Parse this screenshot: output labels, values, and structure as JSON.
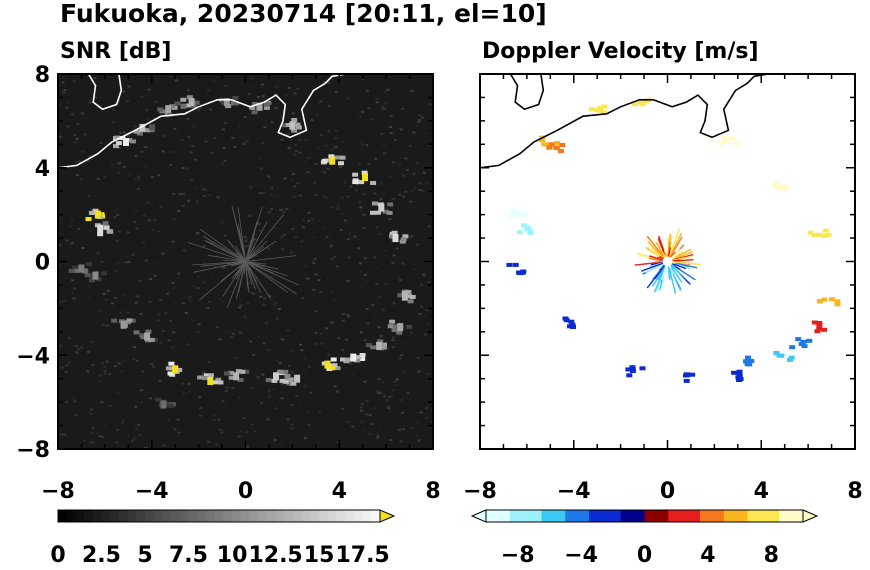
{
  "figure": {
    "title": "Fukuoka, 20230714 [20:11, el=10]"
  },
  "chart_data": [
    {
      "type": "heatmap",
      "title": "SNR [dB]",
      "xlabel": "",
      "ylabel": "",
      "xlim": [
        -8,
        8
      ],
      "ylim": [
        -8,
        8
      ],
      "xticks": [
        "−8",
        "−4",
        "0",
        "4",
        "8"
      ],
      "yticks": [
        "8",
        "4",
        "0",
        "−4",
        "−8"
      ],
      "background": "#1a1a1a",
      "colorbar": {
        "min": 0,
        "max": 18.5,
        "step": 0.5,
        "extend": "max",
        "tick_labels": [
          "0",
          "2.5",
          "5",
          "7.5",
          "10",
          "12.5",
          "15",
          "17.5"
        ],
        "low_color": "#000000",
        "high_color": "#ffffff",
        "extend_color": "#f5e11a"
      },
      "echo_ring": {
        "center": [
          0,
          0
        ],
        "radius_km": 6.3
      },
      "echoes": [
        {
          "x": -6.3,
          "y": 2.0,
          "v": 18
        },
        {
          "x": -6.2,
          "y": 1.4,
          "v": 16
        },
        {
          "x": -5.1,
          "y": 5.1,
          "v": 17
        },
        {
          "x": -4.4,
          "y": 5.7,
          "v": 14
        },
        {
          "x": -3.3,
          "y": 6.5,
          "v": 12
        },
        {
          "x": -2.3,
          "y": 6.8,
          "v": 13
        },
        {
          "x": -0.8,
          "y": 6.8,
          "v": 11
        },
        {
          "x": 0.6,
          "y": 6.6,
          "v": 12
        },
        {
          "x": 2.0,
          "y": 5.8,
          "v": 14
        },
        {
          "x": 3.7,
          "y": 4.3,
          "v": 18
        },
        {
          "x": 5.1,
          "y": 3.6,
          "v": 18
        },
        {
          "x": 5.8,
          "y": 2.3,
          "v": 15
        },
        {
          "x": 6.4,
          "y": 1.0,
          "v": 16
        },
        {
          "x": 6.8,
          "y": -1.5,
          "v": 13
        },
        {
          "x": 6.6,
          "y": -2.8,
          "v": 12
        },
        {
          "x": 5.7,
          "y": -3.6,
          "v": 13
        },
        {
          "x": 4.6,
          "y": -4.1,
          "v": 17
        },
        {
          "x": 3.5,
          "y": -4.4,
          "v": 18
        },
        {
          "x": 2.2,
          "y": -5.0,
          "v": 14
        },
        {
          "x": 1.3,
          "y": -4.9,
          "v": 15
        },
        {
          "x": -0.4,
          "y": -4.9,
          "v": 13
        },
        {
          "x": -1.5,
          "y": -5.1,
          "v": 18
        },
        {
          "x": -3.0,
          "y": -4.6,
          "v": 18
        },
        {
          "x": -4.2,
          "y": -3.2,
          "v": 12
        },
        {
          "x": -5.2,
          "y": -2.7,
          "v": 11
        },
        {
          "x": -6.4,
          "y": -0.6,
          "v": 10
        },
        {
          "x": -7.0,
          "y": -0.3,
          "v": 9
        },
        {
          "x": -3.5,
          "y": -6.1,
          "v": 8
        }
      ]
    },
    {
      "type": "heatmap",
      "title": "Doppler Velocity [m/s]",
      "xlabel": "",
      "ylabel": "",
      "xlim": [
        -8,
        8
      ],
      "ylim": [
        -8,
        8
      ],
      "xticks": [
        "−8",
        "−4",
        "0",
        "4",
        "8"
      ],
      "yticks": [],
      "background": "#ffffff",
      "colorbar": {
        "min": -10,
        "max": 10,
        "step": 0.5,
        "extend": "both",
        "tick_labels": [
          "−8",
          "−4",
          "0",
          "4",
          "8"
        ],
        "negative_colors": [
          "#e0ffff",
          "#9ef0fa",
          "#3cc8f0",
          "#1e78e6",
          "#0a2ad2",
          "#00008c"
        ],
        "positive_colors": [
          "#8c0000",
          "#e61e1e",
          "#f5781e",
          "#fab41e",
          "#fae650",
          "#fffac8"
        ]
      },
      "echoes": [
        {
          "x": -6.3,
          "y": 2.0,
          "v": -9
        },
        {
          "x": -6.2,
          "y": 1.4,
          "v": -8
        },
        {
          "x": -5.1,
          "y": 5.1,
          "v": 5
        },
        {
          "x": -4.8,
          "y": 4.8,
          "v": 4
        },
        {
          "x": -3.0,
          "y": 6.5,
          "v": 7
        },
        {
          "x": -1.0,
          "y": 6.9,
          "v": 8
        },
        {
          "x": 2.6,
          "y": 5.2,
          "v": 9
        },
        {
          "x": 5.0,
          "y": 3.2,
          "v": 9
        },
        {
          "x": 6.5,
          "y": 1.2,
          "v": 8
        },
        {
          "x": 6.9,
          "y": -1.8,
          "v": 5
        },
        {
          "x": 6.6,
          "y": -2.8,
          "v": 2
        },
        {
          "x": 5.7,
          "y": -3.5,
          "v": -5
        },
        {
          "x": 4.9,
          "y": -4.1,
          "v": -6
        },
        {
          "x": 3.4,
          "y": -4.3,
          "v": -4
        },
        {
          "x": 2.8,
          "y": -4.9,
          "v": -3
        },
        {
          "x": 1.0,
          "y": -5.0,
          "v": -2
        },
        {
          "x": -1.3,
          "y": -4.7,
          "v": -2
        },
        {
          "x": -4.2,
          "y": -2.6,
          "v": -2
        },
        {
          "x": -6.4,
          "y": -0.3,
          "v": -2
        }
      ],
      "clutter": {
        "center": [
          0,
          0
        ],
        "radius_km": 1.2
      }
    }
  ]
}
